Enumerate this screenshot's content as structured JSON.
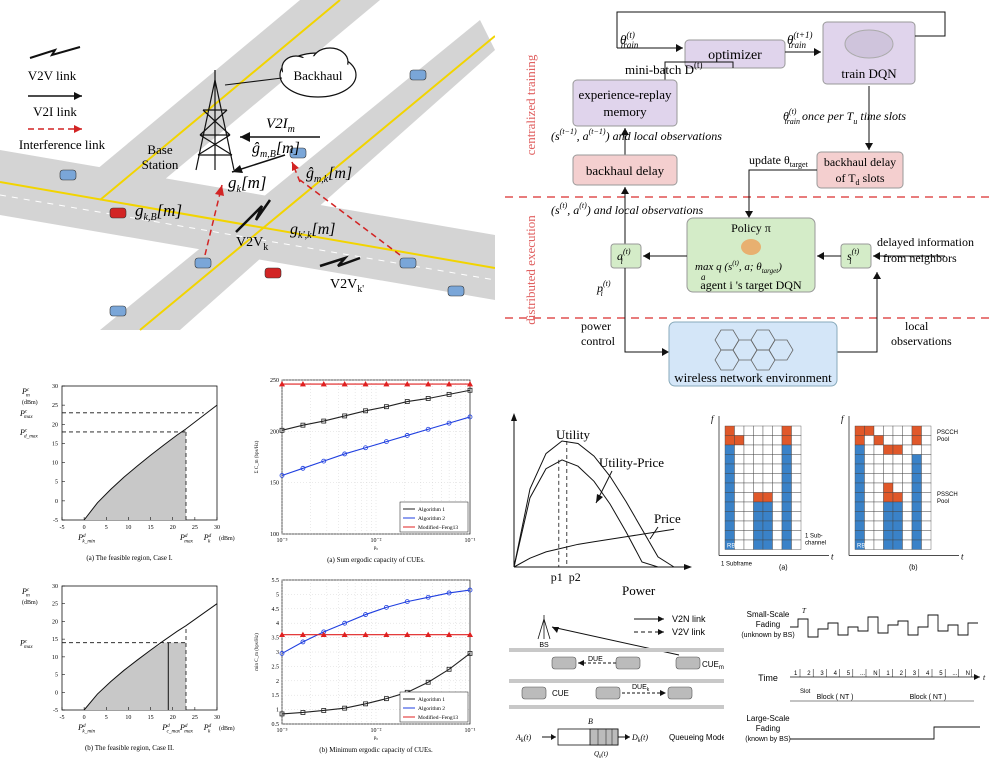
{
  "road_scene": {
    "legend": {
      "v2v": "V2V link",
      "v2i": "V2I link",
      "interference": "Interference link"
    },
    "backhaul": "Backhaul",
    "bs_label_1": "Base",
    "bs_label_2": "Station",
    "v2i_label": "V2I",
    "v2i_sub": "m",
    "g_mB": "ĝ",
    "g_mB_sub": "m,B",
    "g_mB_arg": "[m]",
    "g_mk": "ĝ",
    "g_mk_sub": "m,k",
    "g_mk_arg": "[m]",
    "g_k": "g",
    "g_k_sub": "k",
    "g_k_arg": "[m]",
    "g_kB": "g",
    "g_kB_sub": "k,B",
    "g_kB_arg": "[m]",
    "g_kk": "g",
    "g_kk_sub": "k',k",
    "g_kk_arg": "[m]",
    "v2vk": "V2V",
    "v2vk_sub": "k",
    "v2vkp": "V2V",
    "v2vkp_sub": "k'"
  },
  "drl": {
    "side_top": "centralized training",
    "side_bottom": "distributed execution",
    "optimizer": "optimizer",
    "train_dqn": "train DQN",
    "theta_train": "θ",
    "theta_sup_t": "(t)",
    "theta_sub": "train",
    "theta_sup_t1": "(t+1)",
    "minibatch": "mini-batch D",
    "minibatch_sup": "(t)",
    "replay_1": "experience-replay",
    "replay_2": "memory",
    "state_prev": "(s",
    "state_prev_sup": "(t−1)",
    "state_prev_mid": ", a",
    "state_prev_sup2": "(t−1)",
    "and_local_1": ") and local observations",
    "theta_train_once": "once per T",
    "theta_train_once_sub": "u",
    "theta_train_once_end": " time slots",
    "backhaul_delay": "backhaul delay",
    "update_theta": "update θ",
    "update_theta_sub": "target",
    "backhaul_delay_td_1": "backhaul delay",
    "backhaul_delay_td_2": "of T",
    "backhaul_delay_td_sub": "d",
    "backhaul_delay_td_3": " slots",
    "state_now": "(s",
    "state_now_sup": "(t)",
    "state_now_mid": ", a",
    "state_now_sup2": "(t)",
    "and_local_2": ") and local observations",
    "policy": "Policy π",
    "max_q": "max q (s",
    "max_q_sup": "(t)",
    "max_q_mid": ", a; θ",
    "max_q_sub": "target",
    "max_q_end": ")",
    "max_under": "a",
    "agent_label": "agent i 's target DQN",
    "a_i": "a",
    "a_i_sup": "(t)",
    "a_i_sub": "i",
    "s_i": "s",
    "s_i_sup": "(t)",
    "s_i_sub": "i",
    "p_i": "p",
    "p_i_sup": "(t)",
    "p_i_sub": "i",
    "delayed_1": "delayed information",
    "delayed_2": "from neighbors",
    "power_1": "power",
    "power_2": "control",
    "local_1": "local",
    "local_2": "observations",
    "wireless": "wireless network environment"
  },
  "region_plots": [
    {
      "caption": "(a) The feasible region, Case I.",
      "chart_data": {
        "type": "area",
        "xlim": [
          -5,
          30
        ],
        "ylim": [
          -5,
          30
        ],
        "xticks": [
          -5,
          0,
          5,
          10,
          15,
          20,
          25,
          30
        ],
        "yticks": [
          -5,
          0,
          5,
          10,
          15,
          20,
          25,
          30
        ],
        "ylabel": "P",
        "ylabel_sup": "c",
        "ylabel_sub": "m",
        "ylabel_unit": "(dBm)",
        "xlabel": "P",
        "xlabel_sup": "d",
        "xlabel_sub": "k",
        "xlabel_unit": "(dBm)",
        "ymarks": [
          {
            "label": "P",
            "sup": "c",
            "sub": "max",
            "y": 23
          },
          {
            "label": "P",
            "sup": "c",
            "sub": "d_max",
            "y": 18
          }
        ],
        "xmarks": [
          {
            "label": "P",
            "sup": "d",
            "sub": "k_min",
            "x": 0
          },
          {
            "label": "P",
            "sup": "d",
            "sub": "max",
            "x": 23
          }
        ],
        "boundary_x": [
          0,
          3,
          6,
          9,
          12,
          15,
          18,
          21,
          23,
          30
        ],
        "boundary_y": [
          -5,
          -0.5,
          3,
          6.2,
          9.1,
          11.9,
          14.6,
          17.2,
          18.8,
          25
        ]
      }
    },
    {
      "caption": "(b) The feasible region, Case II.",
      "chart_data": {
        "type": "area",
        "xlim": [
          -5,
          30
        ],
        "ylim": [
          -5,
          30
        ],
        "xticks": [
          -5,
          0,
          5,
          10,
          15,
          20,
          25,
          30
        ],
        "yticks": [
          -5,
          0,
          5,
          10,
          15,
          20,
          25,
          30
        ],
        "ylabel": "P",
        "ylabel_sup": "c",
        "ylabel_sub": "m",
        "ylabel_unit": "(dBm)",
        "xlabel": "P",
        "xlabel_sup": "d",
        "xlabel_sub": "k",
        "xlabel_unit": "(dBm)",
        "ymarks": [
          {
            "label": "P",
            "sup": "c",
            "sub": "max",
            "y": 14
          }
        ],
        "xmarks": [
          {
            "label": "P",
            "sup": "d",
            "sub": "k_min",
            "x": 0
          },
          {
            "label": "P",
            "sup": "d",
            "sub": "c_max",
            "x": 19
          },
          {
            "label": "P",
            "sup": "d",
            "sub": "max",
            "x": 23
          }
        ],
        "boundary_x": [
          0,
          3,
          6,
          9,
          12,
          15,
          18,
          21,
          23,
          30
        ],
        "boundary_y": [
          -5,
          -0.5,
          3,
          6.2,
          9.1,
          11.9,
          14.6,
          17.2,
          18.8,
          25
        ]
      }
    }
  ],
  "capacity_plots": [
    {
      "caption": "(a) Sum ergodic capacity of CUEs.",
      "chart_data": {
        "type": "line",
        "xscale": "log",
        "xlim": [
          0.001,
          0.1
        ],
        "ylim": [
          100,
          250
        ],
        "yticks": [
          100,
          150,
          200,
          250
        ],
        "xticks": [
          0.001,
          0.01,
          0.1
        ],
        "xticklabels": [
          "10⁻³",
          "10⁻²",
          "10⁻¹"
        ],
        "ylabel": "Σ C_m (bps/Hz)",
        "xlabel": "p₀",
        "x": [
          0.001,
          0.00167,
          0.00278,
          0.00464,
          0.00774,
          0.0129,
          0.0215,
          0.0359,
          0.0599,
          0.1
        ],
        "series": [
          {
            "name": "Algorithm 1",
            "color": "#222222",
            "marker": "square",
            "values": [
              201,
              206,
              210,
              215,
              220,
              224,
              229,
              232,
              236,
              240
            ]
          },
          {
            "name": "Algorithm 2",
            "color": "#1f3fe0",
            "marker": "circle",
            "values": [
              157,
              164,
              171,
              178,
              184,
              190,
              196,
              202,
              208,
              214
            ]
          },
          {
            "name": "Modified−Feng13",
            "color": "#e02020",
            "marker": "triangle",
            "values": [
              246,
              246,
              246,
              246,
              246,
              246,
              246,
              246,
              246,
              246
            ]
          }
        ]
      }
    },
    {
      "caption": "(b) Minimum ergodic capacity of CUEs.",
      "chart_data": {
        "type": "line",
        "xscale": "log",
        "xlim": [
          0.001,
          0.1
        ],
        "ylim": [
          0.5,
          5.5
        ],
        "yticks": [
          0.5,
          1,
          1.5,
          2,
          2.5,
          3,
          3.5,
          4,
          4.5,
          5,
          5.5
        ],
        "xticks": [
          0.001,
          0.01,
          0.1
        ],
        "xticklabels": [
          "10⁻³",
          "10⁻²",
          "10⁻¹"
        ],
        "ylabel": "min C_m (bps/Hz)",
        "xlabel": "p₀",
        "x": [
          0.001,
          0.00167,
          0.00278,
          0.00464,
          0.00774,
          0.0129,
          0.0215,
          0.0359,
          0.0599,
          0.1
        ],
        "series": [
          {
            "name": "Algorithm 1",
            "color": "#222222",
            "marker": "square",
            "values": [
              0.85,
              0.9,
              0.97,
              1.05,
              1.2,
              1.38,
              1.6,
              1.95,
              2.4,
              2.95
            ]
          },
          {
            "name": "Algorithm 2",
            "color": "#1f3fe0",
            "marker": "circle",
            "values": [
              2.95,
              3.35,
              3.7,
              4.0,
              4.3,
              4.55,
              4.75,
              4.9,
              5.05,
              5.15
            ]
          },
          {
            "name": "Modified−Feng13",
            "color": "#e02020",
            "marker": "triangle",
            "values": [
              3.6,
              3.6,
              3.6,
              3.6,
              3.6,
              3.6,
              3.6,
              3.6,
              3.6,
              3.6
            ]
          }
        ]
      }
    }
  ],
  "utility": {
    "utility": "Utility",
    "utility_price": "Utility-Price",
    "price": "Price",
    "p1": "p1",
    "p2": "p2",
    "power": "Power",
    "chart_data": {
      "type": "line",
      "x": [
        0,
        0.1,
        0.2,
        0.3,
        0.4,
        0.5,
        0.6,
        0.7,
        0.8,
        0.9,
        1.0
      ],
      "series": [
        {
          "values": [
            0,
            0.62,
            0.9,
            1.0,
            0.98,
            0.88,
            0.72,
            0.52,
            0.3,
            0.08,
            -0.1
          ]
        },
        {
          "values": [
            0,
            0.55,
            0.78,
            0.85,
            0.8,
            0.68,
            0.5,
            0.28,
            0.04,
            -0.2,
            -0.4
          ]
        },
        {
          "values": [
            0,
            0.07,
            0.12,
            0.15,
            0.18,
            0.2,
            0.22,
            0.24,
            0.26,
            0.28,
            0.3
          ]
        }
      ],
      "markers": {
        "p1": 0.28,
        "p2": 0.33
      }
    }
  },
  "grids": {
    "f_label": "f",
    "t_label": "t",
    "rb": "RB",
    "subframe": "1 Subframe",
    "subchannel_1": "1 Sub-",
    "subchannel_2": "channel",
    "caption_a": "(a)",
    "caption_b": "(b)",
    "pscch_1": "PSCCH",
    "pscch_2": "Pool",
    "pssch_1": "PSSCH",
    "pssch_2": "Pool",
    "colors": {
      "blue": "#3a82c8",
      "orange": "#e0582a",
      "white": "#ffffff"
    },
    "grid_a": [
      "OWWWWWOW",
      "OOWWWWOW",
      "BWWWWWBW",
      "BWWWWWBW",
      "BWWWWWBW",
      "BWWWWWBW",
      "BWWWWWBW",
      "BWWOOWBW",
      "BWWBBWBW",
      "BWWBBWBW",
      "BWWBBWBW",
      "BWWBBWBW",
      "BWWBBWBW"
    ],
    "grid_b": [
      "OOWWWWOW",
      "OWOWWWOW",
      "BWWOOWWW",
      "BWWWWWBW",
      "BWWWWWBW",
      "BWWWWWBW",
      "BWWOWWBW",
      "BWWOOWBW",
      "BWWBBWBW",
      "BWWBBWBW",
      "BWWBBWBW",
      "BWWBBWBW",
      "BWWBBWBW"
    ]
  },
  "queue": {
    "bs": "BS",
    "v2n": "V2N  link",
    "v2v": "V2V link",
    "due": "DUE",
    "cue_m": "CUE",
    "cue_m_sub": "m",
    "cue": "CUE",
    "due_k": "DUE",
    "due_k_sub": "k",
    "a_k": "A",
    "a_k_sub": "k",
    "a_k_t": "(t)",
    "d_k": "D",
    "d_k_sub": "k",
    "d_k_t": "(t)",
    "q_k": "Q",
    "q_k_sub": "k",
    "q_k_t": "(t)",
    "b_label": "B",
    "queue_model": "Queueing Model"
  },
  "timing": {
    "ssf_1": "Small-Scale",
    "ssf_2": "Fading",
    "ssf_3": "(unknown by BS)",
    "t_label": "T",
    "time": "Time",
    "slot": "Slot",
    "slot_nums": [
      "1",
      "2",
      "3",
      "4",
      "5",
      "...",
      "N",
      "1",
      "2",
      "3",
      "4",
      "5",
      "...",
      "N"
    ],
    "t_axis": "t",
    "block": "Block ( NT )",
    "lsf_1": "Large-Scale",
    "lsf_2": "Fading",
    "lsf_3": "(known by BS)"
  }
}
